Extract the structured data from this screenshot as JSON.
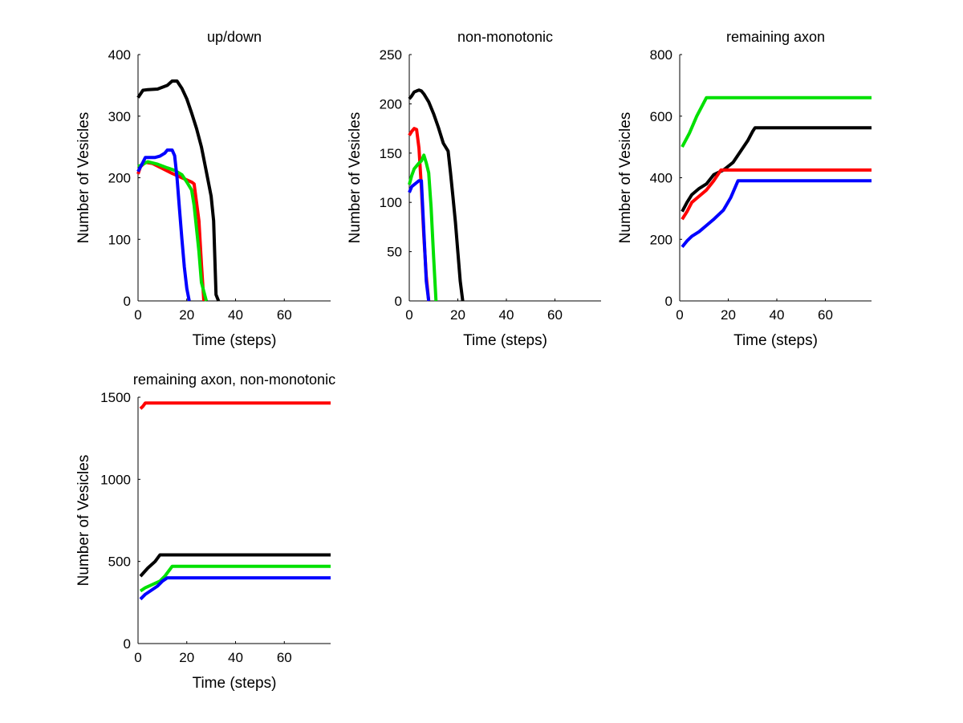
{
  "chart_data": [
    {
      "type": "line",
      "title": "up/down",
      "xlabel": "Time (steps)",
      "ylabel": "Number of Vesicles",
      "xlim": [
        0,
        79
      ],
      "ylim": [
        0,
        400
      ],
      "xticks": [
        0,
        20,
        40,
        60
      ],
      "yticks": [
        0,
        100,
        200,
        300,
        400
      ],
      "xtick_labels": [
        "0",
        "20",
        "40",
        "60"
      ],
      "ytick_labels": [
        "0",
        "100",
        "200",
        "300",
        "400"
      ],
      "series": [
        {
          "name": "black",
          "color": "#000000",
          "x": [
            0,
            2,
            4,
            8,
            12,
            14,
            16,
            18,
            20,
            22,
            24,
            26,
            28,
            30,
            31,
            32,
            33
          ],
          "y": [
            330,
            342,
            343,
            344,
            350,
            357,
            357,
            345,
            328,
            305,
            280,
            250,
            210,
            170,
            130,
            10,
            0
          ]
        },
        {
          "name": "red",
          "color": "#ff0000",
          "x": [
            0,
            1,
            3,
            6,
            10,
            14,
            18,
            22,
            23,
            25,
            26,
            27
          ],
          "y": [
            206,
            218,
            225,
            223,
            215,
            207,
            200,
            193,
            190,
            130,
            60,
            0
          ]
        },
        {
          "name": "green",
          "color": "#00e000",
          "x": [
            0,
            2,
            4,
            8,
            12,
            15,
            18,
            20,
            22,
            23,
            25,
            26,
            28
          ],
          "y": [
            218,
            222,
            226,
            222,
            216,
            212,
            205,
            193,
            180,
            155,
            80,
            30,
            0
          ]
        },
        {
          "name": "blue",
          "color": "#0000ff",
          "x": [
            0,
            2,
            3,
            5,
            7,
            9,
            11,
            12,
            14,
            15,
            16,
            17,
            18,
            19,
            20,
            21
          ],
          "y": [
            210,
            225,
            233,
            233,
            233,
            235,
            240,
            245,
            245,
            236,
            200,
            150,
            100,
            55,
            20,
            0
          ]
        }
      ]
    },
    {
      "type": "line",
      "title": "non-monotonic",
      "xlabel": "Time (steps)",
      "ylabel": "Number of Vesicles",
      "xlim": [
        0,
        79
      ],
      "ylim": [
        0,
        250
      ],
      "xticks": [
        0,
        20,
        40,
        60
      ],
      "yticks": [
        0,
        50,
        100,
        150,
        200,
        250
      ],
      "xtick_labels": [
        "0",
        "20",
        "40",
        "60"
      ],
      "ytick_labels": [
        "0",
        "50",
        "100",
        "150",
        "200",
        "250"
      ],
      "series": [
        {
          "name": "black",
          "color": "#000000",
          "x": [
            0,
            1,
            2,
            3,
            4,
            5,
            6,
            7,
            8,
            10,
            12,
            14,
            16,
            17,
            18,
            19,
            20,
            21,
            22
          ],
          "y": [
            205,
            208,
            212,
            213,
            214,
            213,
            210,
            206,
            202,
            190,
            176,
            160,
            152,
            130,
            105,
            80,
            50,
            20,
            0
          ]
        },
        {
          "name": "red",
          "color": "#ff0000",
          "x": [
            0,
            1,
            2,
            3,
            4,
            5,
            6,
            7,
            8
          ],
          "y": [
            168,
            172,
            175,
            174,
            155,
            115,
            65,
            25,
            0
          ]
        },
        {
          "name": "green",
          "color": "#00e000",
          "x": [
            0,
            1,
            2,
            3,
            4,
            5,
            6,
            7,
            8,
            9,
            10,
            11
          ],
          "y": [
            118,
            127,
            134,
            137,
            140,
            142,
            148,
            140,
            130,
            95,
            45,
            0
          ]
        },
        {
          "name": "blue",
          "color": "#0000ff",
          "x": [
            0,
            1,
            2,
            3,
            4,
            5,
            6,
            7,
            8
          ],
          "y": [
            110,
            116,
            118,
            120,
            122,
            122,
            70,
            20,
            0
          ]
        }
      ]
    },
    {
      "type": "line",
      "title": "remaining axon",
      "xlabel": "Time (steps)",
      "ylabel": "Number of Vesicles",
      "xlim": [
        0,
        79
      ],
      "ylim": [
        0,
        800
      ],
      "xticks": [
        0,
        20,
        40,
        60
      ],
      "yticks": [
        0,
        200,
        400,
        600,
        800
      ],
      "xtick_labels": [
        "0",
        "20",
        "40",
        "60"
      ],
      "ytick_labels": [
        "0",
        "200",
        "400",
        "600",
        "800"
      ],
      "series": [
        {
          "name": "green",
          "color": "#00e000",
          "x": [
            1,
            4,
            7,
            11,
            79
          ],
          "y": [
            500,
            545,
            600,
            660,
            660
          ]
        },
        {
          "name": "black",
          "color": "#000000",
          "x": [
            1,
            3,
            5,
            8,
            11,
            14,
            18,
            22,
            25,
            28,
            30,
            31,
            79
          ],
          "y": [
            290,
            320,
            345,
            365,
            380,
            410,
            425,
            450,
            485,
            520,
            550,
            562,
            562
          ]
        },
        {
          "name": "red",
          "color": "#ff0000",
          "x": [
            1,
            3,
            5,
            8,
            11,
            14,
            17,
            79
          ],
          "y": [
            265,
            290,
            320,
            340,
            360,
            390,
            425,
            425
          ]
        },
        {
          "name": "blue",
          "color": "#0000ff",
          "x": [
            1,
            3,
            5,
            8,
            11,
            14,
            18,
            21,
            24,
            79
          ],
          "y": [
            175,
            195,
            210,
            225,
            245,
            265,
            295,
            335,
            390,
            390
          ]
        }
      ]
    },
    {
      "type": "line",
      "title": "remaining axon, non-monotonic",
      "xlabel": "Time (steps)",
      "ylabel": "Number of Vesicles",
      "xlim": [
        0,
        79
      ],
      "ylim": [
        0,
        1500
      ],
      "xticks": [
        0,
        20,
        40,
        60
      ],
      "yticks": [
        0,
        500,
        1000,
        1500
      ],
      "xtick_labels": [
        "0",
        "20",
        "40",
        "60"
      ],
      "ytick_labels": [
        "0",
        "500",
        "1000",
        "1500"
      ],
      "series": [
        {
          "name": "red",
          "color": "#ff0000",
          "x": [
            1,
            2,
            3,
            79
          ],
          "y": [
            1430,
            1445,
            1465,
            1465
          ]
        },
        {
          "name": "black",
          "color": "#000000",
          "x": [
            1,
            4,
            7,
            9,
            79
          ],
          "y": [
            410,
            460,
            500,
            540,
            540
          ]
        },
        {
          "name": "green",
          "color": "#00e000",
          "x": [
            1,
            3,
            6,
            9,
            11,
            14,
            79
          ],
          "y": [
            320,
            340,
            360,
            380,
            410,
            470,
            470
          ]
        },
        {
          "name": "blue",
          "color": "#0000ff",
          "x": [
            1,
            3,
            6,
            8,
            10,
            12,
            79
          ],
          "y": [
            270,
            300,
            330,
            350,
            380,
            400,
            400
          ]
        }
      ]
    }
  ]
}
